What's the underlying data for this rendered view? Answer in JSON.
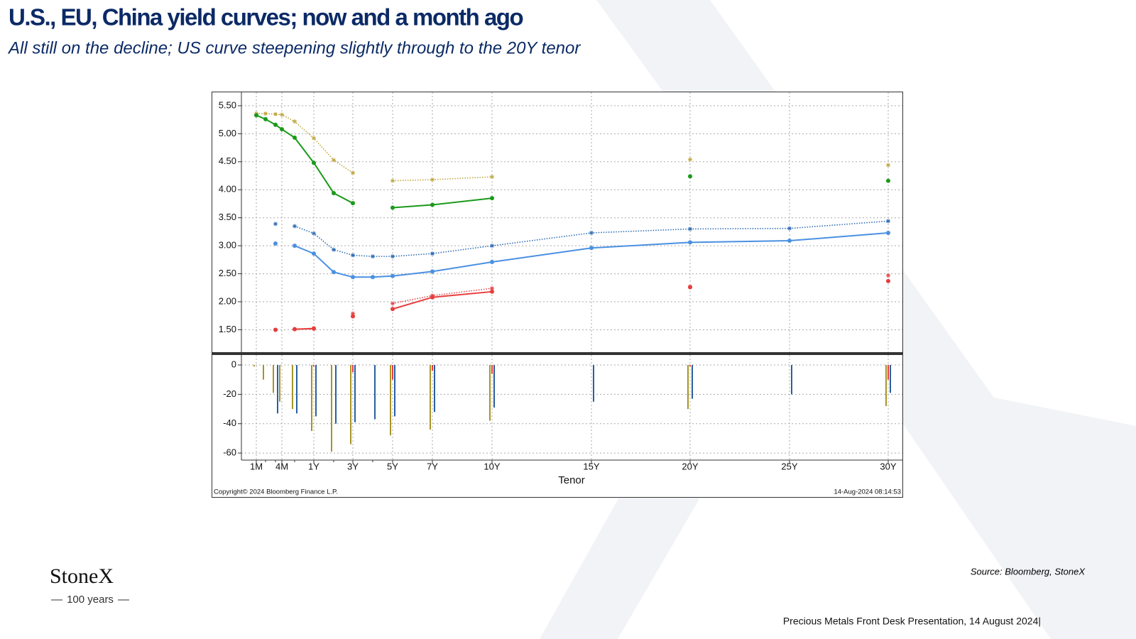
{
  "header": {
    "title": "U.S., EU, China yield curves; now and a month ago",
    "subtitle": "All still on the decline; US curve steepening slightly through to the 20Y tenor"
  },
  "chart_notes": {
    "copyright": "Copyright© 2024 Bloomberg Finance L.P.",
    "timestamp": "14-Aug-2024 08:14:53"
  },
  "footer": {
    "source": "Source: Bloomberg, StoneX",
    "presentation": "Precious Metals Front Desk Presentation, 14 August 2024|",
    "logo": "StoneX",
    "logo_sub": "100 years"
  },
  "chart_data": [
    {
      "type": "line",
      "ylim": [
        1.1,
        5.74
      ],
      "yticks": [
        {
          "value": 1.5,
          "label": "1.50"
        },
        {
          "value": 2,
          "label": "2.00"
        },
        {
          "value": 2.5,
          "label": "2.50"
        },
        {
          "value": 3,
          "label": "3.00"
        },
        {
          "value": 3.5,
          "label": "3.50"
        },
        {
          "value": 4,
          "label": "4.00"
        },
        {
          "value": 4.5,
          "label": "4.50"
        },
        {
          "value": 5,
          "label": "5.00"
        },
        {
          "value": 5.5,
          "label": "5.50"
        }
      ],
      "grid": true,
      "series": [
        {
          "color": "#c0a840",
          "style": "dotted",
          "values": [
            5.36,
            5.36,
            5.35,
            5.34,
            5.22,
            4.92,
            4.53,
            4.3,
            null,
            4.16,
            4.18,
            4.23,
            null,
            4.54,
            null,
            4.44
          ]
        },
        {
          "color": "#1a9a1a",
          "style": "solid",
          "values": [
            5.33,
            5.26,
            5.16,
            5.08,
            4.93,
            4.48,
            3.94,
            3.76,
            null,
            3.68,
            3.73,
            3.85,
            null,
            4.24,
            null,
            4.16
          ]
        },
        {
          "color": "#2f6db5",
          "style": "dotted",
          "values": [
            null,
            null,
            3.39,
            null,
            3.35,
            3.22,
            2.93,
            2.83,
            2.81,
            2.81,
            2.86,
            3.0,
            3.23,
            3.3,
            3.31,
            3.44
          ]
        },
        {
          "color": "#4a90e2",
          "style": "solid",
          "values": [
            null,
            null,
            3.04,
            null,
            3.0,
            2.86,
            2.53,
            2.44,
            2.44,
            2.46,
            2.54,
            2.71,
            2.96,
            3.06,
            3.09,
            3.23
          ]
        },
        {
          "color": "#e04848",
          "style": "dotted",
          "values": [
            null,
            null,
            1.5,
            null,
            1.51,
            1.53,
            null,
            1.79,
            null,
            1.97,
            2.11,
            2.24,
            null,
            2.27,
            null,
            2.47
          ]
        },
        {
          "color": "#e83c3c",
          "style": "solid",
          "values": [
            null,
            null,
            1.5,
            null,
            1.51,
            1.52,
            null,
            1.74,
            null,
            1.87,
            2.08,
            2.18,
            null,
            2.26,
            null,
            2.37
          ]
        }
      ]
    },
    {
      "type": "bar",
      "x_label": "Tenor",
      "categories": [
        "1M",
        null,
        null,
        "4M",
        null,
        "1Y",
        null,
        "3Y",
        null,
        "5Y",
        "7Y",
        "10Y",
        "15Y",
        "20Y",
        "25Y",
        "30Y"
      ],
      "ylim": [
        -64.8,
        6.8
      ],
      "yticks": [
        -60,
        -40,
        -20,
        0
      ],
      "grid": true,
      "series": [
        {
          "color": "#a89428",
          "values": [
            -1,
            -10,
            -19,
            -25,
            -30,
            -45,
            -59,
            -54,
            null,
            -48,
            -44,
            -38,
            null,
            -30,
            null,
            -28
          ]
        },
        {
          "color": "#e04040",
          "values": [
            null,
            null,
            null,
            null,
            null,
            -1,
            null,
            -5,
            null,
            -10,
            -4,
            -6,
            null,
            -1,
            null,
            -10
          ]
        },
        {
          "color": "#2a5fa0",
          "values": [
            null,
            null,
            -33,
            null,
            -33,
            -35,
            -40,
            -39,
            -37,
            -35,
            -32,
            -29,
            -25,
            -23,
            -20,
            -19
          ]
        }
      ]
    }
  ]
}
